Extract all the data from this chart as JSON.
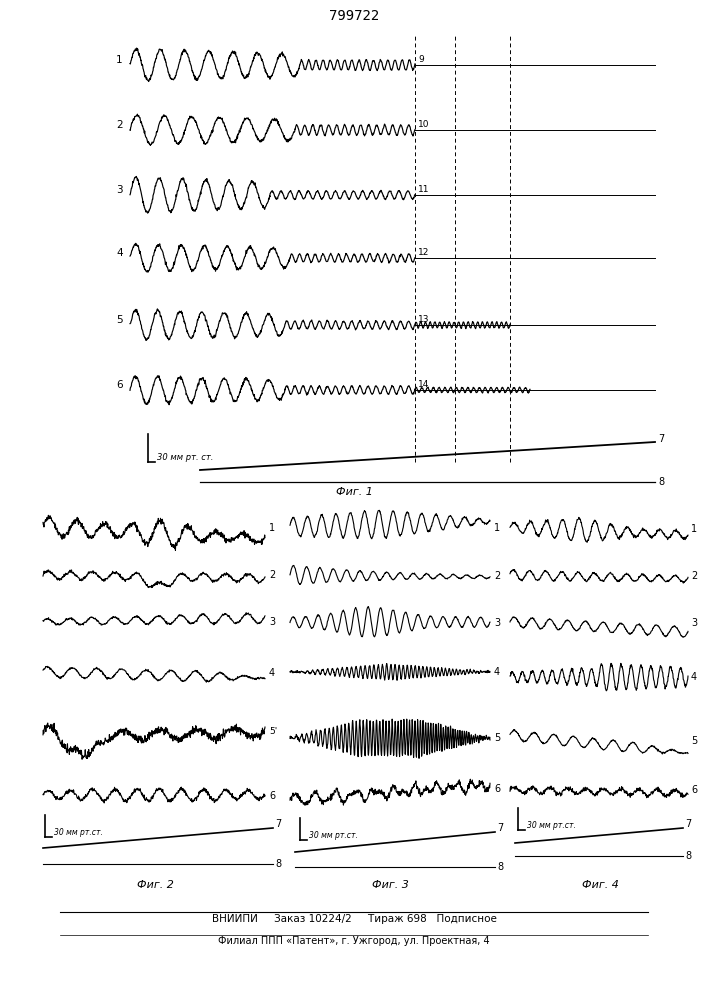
{
  "title": "799722",
  "background_color": "#ffffff",
  "fig1_label": "Фиг. 1",
  "fig2_label": "Фиг. 2",
  "fig3_label": "Фиг. 3",
  "fig4_label": "Фиг. 4",
  "bottom_line1": "ВНИИПИ     Заказ 10224/2     Тираж 698   Подписное",
  "bottom_line2": "Филиал ППП «Патент», г. Ужгород, ул. Проектная, 4"
}
